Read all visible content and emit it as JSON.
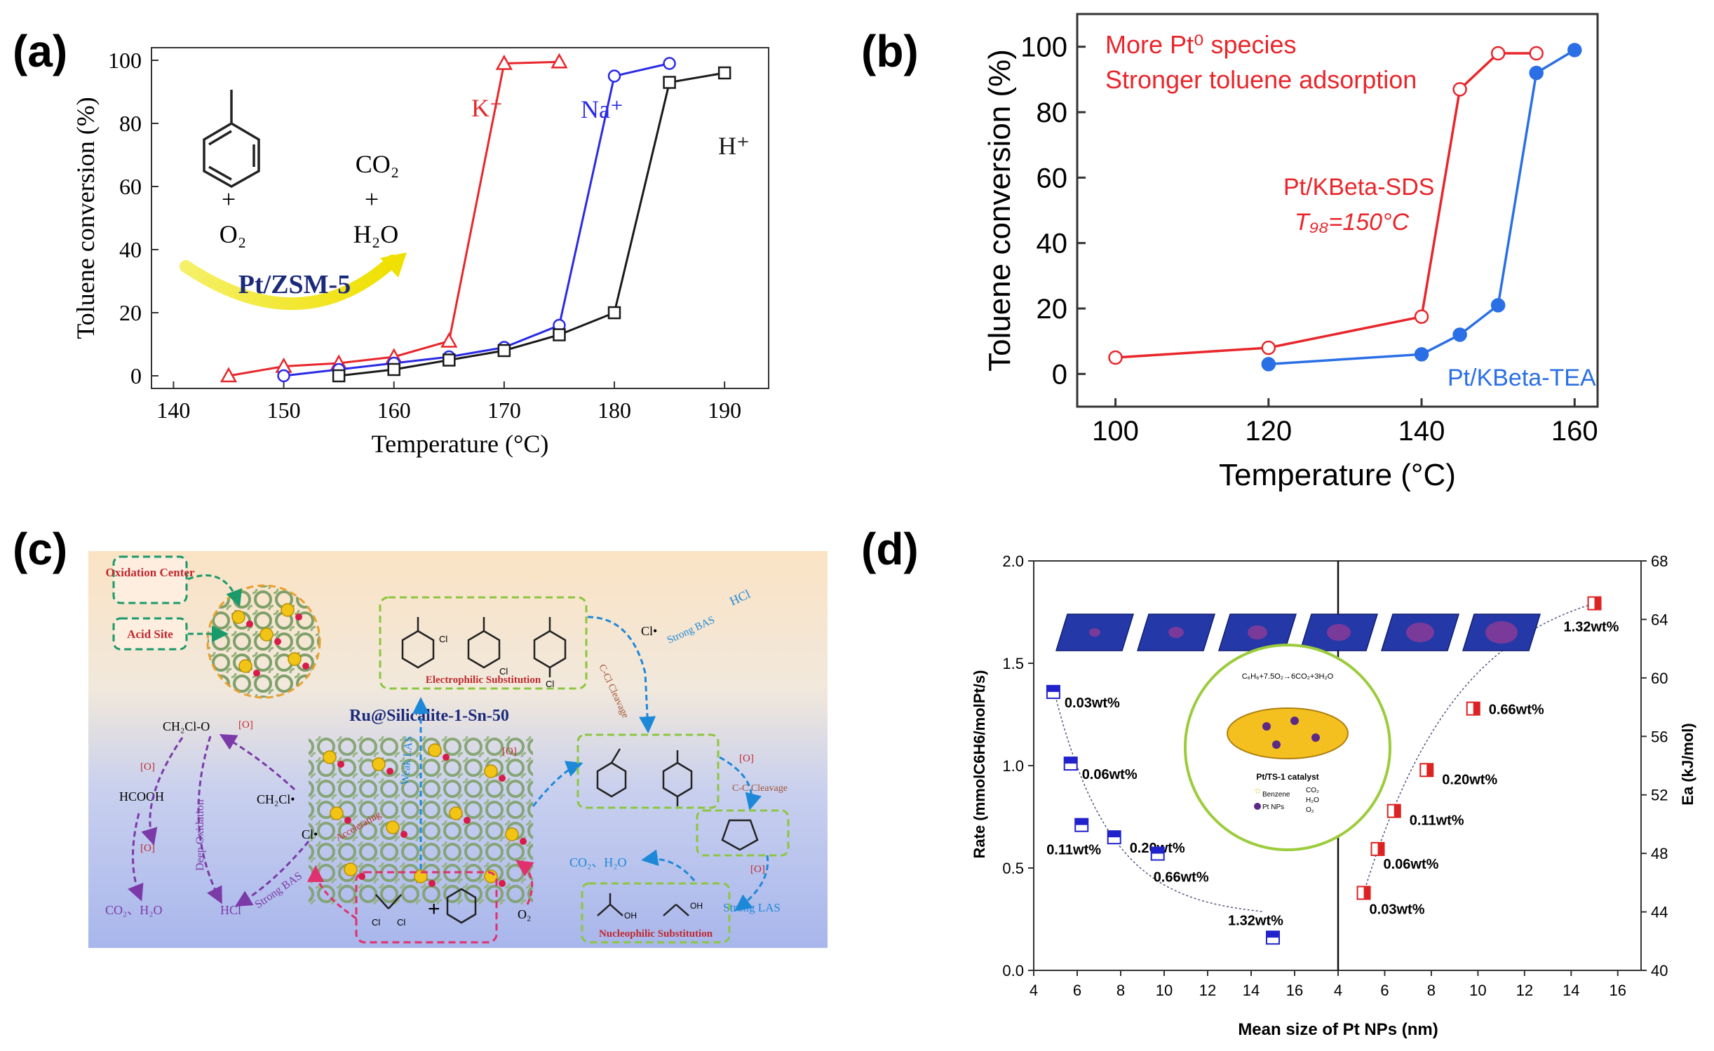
{
  "panels": {
    "a": {
      "letter": "(a)"
    },
    "b": {
      "letter": "(b)"
    },
    "c": {
      "letter": "(c)"
    },
    "d": {
      "letter": "(d)"
    }
  },
  "chart_data": [
    {
      "id": "a",
      "type": "line",
      "title": "",
      "xlabel": "Temperature (°C)",
      "ylabel": "Toluene conversion (%)",
      "xlim": [
        138,
        194
      ],
      "ylim": [
        -4,
        104
      ],
      "xticks": [
        140,
        150,
        160,
        170,
        180,
        190
      ],
      "yticks": [
        0,
        20,
        40,
        60,
        80,
        100
      ],
      "series": [
        {
          "name": "K⁺",
          "color": "#e8262b",
          "marker": "triangle",
          "x": [
            145,
            150,
            155,
            160,
            165,
            170,
            175
          ],
          "y": [
            0,
            3,
            4,
            6,
            11,
            99,
            99.5
          ]
        },
        {
          "name": "Na⁺",
          "color": "#2a2ae6",
          "marker": "circle",
          "x": [
            150,
            155,
            160,
            165,
            170,
            175,
            180,
            185
          ],
          "y": [
            0,
            2,
            4,
            6,
            9,
            16,
            95,
            99
          ]
        },
        {
          "name": "H⁺",
          "color": "#1a1a1a",
          "marker": "square",
          "x": [
            155,
            160,
            165,
            170,
            175,
            180,
            185,
            190
          ],
          "y": [
            0,
            2,
            5,
            8,
            13,
            20,
            93,
            96
          ]
        }
      ],
      "annotations": {
        "plus1": "+",
        "o2": "O₂",
        "co2": "CO₂",
        "plus2": "+",
        "h2o": "H₂O",
        "catalyst": "Pt/ZSM-5"
      }
    },
    {
      "id": "b",
      "type": "line",
      "title": "",
      "xlabel": "Temperature (°C)",
      "ylabel": "Toluene conversion (%)",
      "xlim": [
        95,
        163
      ],
      "ylim": [
        -10,
        110
      ],
      "xticks": [
        100,
        120,
        140,
        160
      ],
      "yticks": [
        0,
        20,
        40,
        60,
        80,
        100
      ],
      "series": [
        {
          "name": "Pt/KBeta-SDS",
          "color": "#e8262b",
          "marker": "open-circle",
          "x": [
            100,
            120,
            140,
            145,
            150,
            155
          ],
          "y": [
            5,
            8,
            17.5,
            87,
            98,
            98
          ]
        },
        {
          "name": "Pt/KBeta-TEA",
          "color": "#2a6fe6",
          "marker": "filled-circle",
          "x": [
            120,
            140,
            145,
            150,
            155,
            160
          ],
          "y": [
            3,
            6,
            12,
            21,
            92,
            99
          ]
        }
      ],
      "annotations": {
        "line1": "More Pt⁰ species",
        "line2": "Stronger toluene adsorption",
        "sds_label": "Pt/KBeta-SDS",
        "t98_label": "T₉₈=150°C",
        "tea_label": "Pt/KBeta-TEA"
      }
    },
    {
      "id": "d",
      "type": "scatter",
      "title": "",
      "xlabel": "Mean size of Pt NPs (nm)",
      "ylabel_left": "Rate (mmolC6H6/molPt/s)",
      "ylabel_right": "Ea (kJ/mol)",
      "left": {
        "xlim": [
          4,
          18
        ],
        "ylim": [
          0,
          2.0
        ],
        "xticks": [
          4,
          6,
          8,
          10,
          12,
          14,
          16
        ],
        "yticks": [
          0.0,
          0.5,
          1.0,
          1.5,
          2.0
        ],
        "series": [
          {
            "name": "Rate",
            "color": "#2222cc",
            "x": [
              4.9,
              5.7,
              6.2,
              7.7,
              9.7,
              15.0
            ],
            "y": [
              1.36,
              1.01,
              0.71,
              0.65,
              0.57,
              0.16
            ],
            "labels": [
              "0.03wt%",
              "0.06wt%",
              "0.11wt%",
              "0.20wt%",
              "0.66wt%",
              "1.32wt%"
            ]
          }
        ]
      },
      "right": {
        "xlim": [
          4,
          17
        ],
        "ylim": [
          40,
          68
        ],
        "xticks": [
          4,
          6,
          8,
          10,
          12,
          14,
          16
        ],
        "yticks": [
          40,
          44,
          48,
          52,
          56,
          60,
          64,
          68
        ],
        "series": [
          {
            "name": "Ea",
            "color": "#dd2222",
            "x": [
              5.1,
              5.7,
              6.4,
              7.8,
              9.8,
              15.0
            ],
            "y": [
              45.3,
              48.3,
              50.9,
              53.7,
              57.9,
              65.1
            ],
            "labels": [
              "0.03wt%",
              "0.06wt%",
              "0.11wt%",
              "0.20wt%",
              "0.66wt%",
              "1.32wt%"
            ]
          }
        ]
      },
      "inset": {
        "equation": "C₆H₆+7.5O₂→6CO₂+3H₂O",
        "catalyst": "Pt/TS-1 catalyst",
        "legend": [
          "Benzene",
          "Pt NPs",
          "CO₂",
          "H₂O",
          "O₂"
        ]
      }
    }
  ],
  "diagram_c": {
    "oxidation_center": "Oxidation Center",
    "acid_site": "Acid Site",
    "catalyst_name": "Ru@Silicalite-1-Sn-50",
    "electrophilic": "Electrophilic Substitution",
    "nucleophilic": "Nucleophilic Substitution",
    "ch2clo": "CH₂Cl-O",
    "ch2cl": "CH₂Cl•",
    "cl_dot1": "Cl•",
    "cl_dot2": "Cl•",
    "hcooh": "HCOOH",
    "o_label": "[O]",
    "deep_oxidation": "Deep Oxidation",
    "co2_h2o_left": "CO₂、H₂O",
    "hcl_left": "HCl",
    "strong_bas_left": "Strong BAS",
    "strong_bas_right": "Strong BAS",
    "hcl_right": "HCl",
    "weak_las": "Weak LAS",
    "ccl_cleavage": "C-Cl Cleavage",
    "cc_cleavage": "C-C Cleavage",
    "co2_h2o_right": "CO₂、H₂O",
    "strong_las": "Strong LAS",
    "o2": "O₂",
    "plus": "+",
    "accelerating": "Accelerating",
    "cl": "Cl",
    "o": "O",
    "oh": "OH"
  }
}
